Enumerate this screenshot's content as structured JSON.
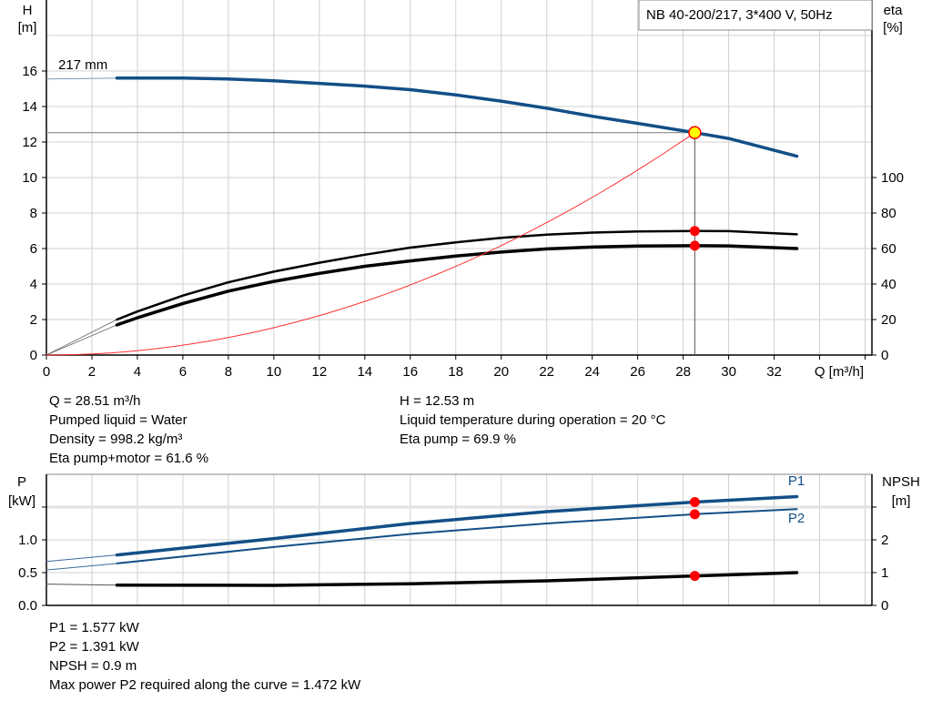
{
  "chart_data": [
    {
      "type": "line",
      "title": "NB 40-200/217, 3*400 V, 50Hz",
      "xlabel": "Q [m³/h]",
      "ylabel": "H\n[m]",
      "y2label": "eta\n[%]",
      "xlim": [
        0,
        36.3
      ],
      "ylim": [
        0,
        20
      ],
      "y2lim": [
        0,
        200
      ],
      "xticks": [
        0,
        2,
        4,
        6,
        8,
        10,
        12,
        14,
        16,
        18,
        20,
        22,
        24,
        26,
        28,
        30,
        32
      ],
      "yticks": [
        0,
        2,
        4,
        6,
        8,
        10,
        12,
        14,
        16
      ],
      "y2ticks": [
        0,
        20,
        40,
        60,
        80,
        100
      ],
      "grid": true,
      "curve_label": "217 mm",
      "series": [
        {
          "key": "head",
          "axis": "left",
          "color": "#134f87",
          "x": [
            3.1,
            4,
            6,
            8,
            10,
            12,
            14,
            16,
            18,
            20,
            22,
            24,
            26,
            28.51,
            30,
            33
          ],
          "y": [
            15.6,
            15.6,
            15.6,
            15.55,
            15.45,
            15.3,
            15.15,
            14.95,
            14.65,
            14.3,
            13.9,
            13.45,
            13.05,
            12.53,
            12.2,
            11.2
          ],
          "extrapolated": {
            "x": [
              0,
              3.1
            ],
            "y": [
              15.55,
              15.6
            ]
          }
        },
        {
          "key": "eta_pump",
          "axis": "right",
          "color": "#000000",
          "x": [
            3.1,
            4,
            6,
            8,
            10,
            12,
            14,
            16,
            18,
            20,
            22,
            24,
            26,
            28.51,
            30,
            33
          ],
          "y": [
            20,
            24.5,
            33.5,
            41,
            47,
            52,
            56.5,
            60.5,
            63.5,
            66,
            67.8,
            69,
            69.6,
            69.9,
            69.8,
            68
          ],
          "extrapolated": {
            "x": [
              0,
              3.1
            ],
            "y": [
              0,
              20
            ]
          }
        },
        {
          "key": "eta_pump_motor",
          "axis": "right",
          "color": "#000000",
          "x": [
            3.1,
            4,
            6,
            8,
            10,
            12,
            14,
            16,
            18,
            20,
            22,
            24,
            26,
            28.51,
            30,
            33
          ],
          "y": [
            17,
            21,
            29,
            36,
            41.5,
            46,
            50,
            53,
            55.8,
            58,
            59.8,
            60.8,
            61.4,
            61.6,
            61.5,
            60
          ],
          "extrapolated": {
            "x": [
              0,
              3.1
            ],
            "y": [
              0,
              17
            ]
          }
        },
        {
          "key": "system_curve",
          "axis": "left",
          "color": "#ff3030",
          "x": [
            0,
            28.51
          ],
          "y": [
            0,
            12.53
          ],
          "shape": "quadratic"
        }
      ],
      "duty_point": {
        "Q": 28.51,
        "H": 12.53,
        "eta_pump": 69.9,
        "eta_pump_motor": 61.6
      }
    },
    {
      "type": "line",
      "ylabel": "P\n[kW]",
      "y2label": "NPSH\n[m]",
      "xlim": [
        0,
        36.3
      ],
      "ylim": [
        0,
        2.0
      ],
      "y2lim": [
        0,
        4
      ],
      "yticks": [
        "0.0",
        "0.5",
        "1.0"
      ],
      "yticks_unlabeled": [
        1.5
      ],
      "y2ticks": [
        "0",
        "1",
        "2"
      ],
      "y2ticks_unlabeled": [
        3
      ],
      "grid": true,
      "series": [
        {
          "name": "P1",
          "axis": "left",
          "color": "#134f87",
          "x": [
            3.1,
            10,
            16,
            22,
            28.51,
            33
          ],
          "y": [
            0.77,
            1.02,
            1.25,
            1.43,
            1.577,
            1.66
          ],
          "extrapolated": {
            "x": [
              0,
              3.1
            ],
            "y": [
              0.67,
              0.77
            ]
          }
        },
        {
          "name": "P2",
          "axis": "left",
          "color": "#134f87",
          "x": [
            3.1,
            10,
            16,
            22,
            28.51,
            33
          ],
          "y": [
            0.64,
            0.89,
            1.09,
            1.25,
            1.391,
            1.47
          ],
          "extrapolated": {
            "x": [
              0,
              3.1
            ],
            "y": [
              0.54,
              0.64
            ]
          }
        },
        {
          "key": "npsh",
          "axis": "right",
          "color": "#000000",
          "x": [
            3.1,
            10,
            16,
            22,
            28.51,
            33
          ],
          "y": [
            0.62,
            0.61,
            0.66,
            0.75,
            0.9,
            1.0
          ],
          "extrapolated": {
            "x": [
              0,
              3.1
            ],
            "y": [
              0.65,
              0.62
            ]
          }
        }
      ]
    }
  ],
  "info_top": {
    "left": [
      "Q = 28.51 m³/h",
      "Pumped liquid = Water",
      "Density = 998.2 kg/m³",
      "Eta pump+motor = 61.6 %"
    ],
    "right": [
      "H = 12.53 m",
      "Liquid temperature during operation = 20 °C",
      "Eta pump = 69.9 %"
    ]
  },
  "info_bottom": [
    "P1 = 1.577 kW",
    "P2 = 1.391 kW",
    "NPSH = 0.9 m",
    "Max power P2 required along the curve = 1.472 kW"
  ],
  "colors": {
    "head": "#134f87",
    "duty_point_fill": "#ffff00",
    "marker": "#ff0000",
    "grid": "#d0d0d0"
  }
}
